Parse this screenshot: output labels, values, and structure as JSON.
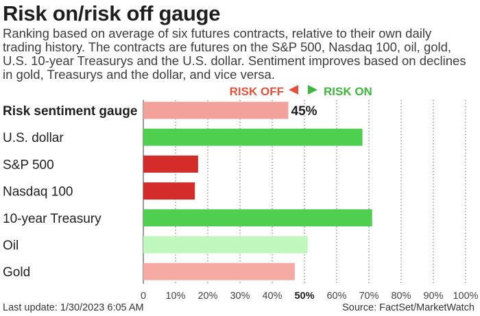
{
  "header": {
    "title": "Risk on/risk off gauge",
    "subtitle_lines": [
      "Ranking based on average of six futures contracts, relative to their own daily",
      "trading history. The contracts are futures on the S&P 500, Nasdaq 100, oil, gold,",
      "U.S. 10-year Treasurys and the U.S. dollar. Sentiment improves based on declines",
      "in gold, Treasurys and the dollar, and vice versa."
    ]
  },
  "direction": {
    "risk_off_label": "RISK OFF",
    "risk_on_label": "RISK ON",
    "risk_off_color": "#e8503a",
    "risk_on_color": "#3cb83c"
  },
  "chart_data": {
    "type": "bar",
    "orientation": "horizontal",
    "categories": [
      "Risk sentiment gauge",
      "U.S. dollar",
      "S&P 500",
      "Nasdaq 100",
      "10-year Treasury",
      "Oil",
      "Gold"
    ],
    "values": [
      45,
      68,
      17,
      16,
      71,
      51,
      47
    ],
    "colors": [
      "#f2a19b",
      "#4fcf4f",
      "#d42b2b",
      "#d42b2b",
      "#4fcf4f",
      "#bff7bd",
      "#f5aaa4"
    ],
    "bold_category": "Risk sentiment gauge",
    "value_labels": [
      "45%",
      "",
      "",
      "",
      "",
      "",
      ""
    ],
    "xlim": [
      0,
      100
    ],
    "x_ticks": [
      0,
      10,
      20,
      30,
      40,
      50,
      60,
      70,
      80,
      90,
      100
    ],
    "x_tick_labels": [
      "0",
      "10%",
      "20%",
      "30%",
      "40%",
      "50%",
      "60%",
      "70%",
      "80%",
      "90%",
      "100%"
    ],
    "emphasized_tick": "50%",
    "grid": "vertical dotted"
  },
  "footer": {
    "last_update": "Last update: 1/30/2023 6:05 AM",
    "source": "Source: FactSet/MarketWatch"
  }
}
